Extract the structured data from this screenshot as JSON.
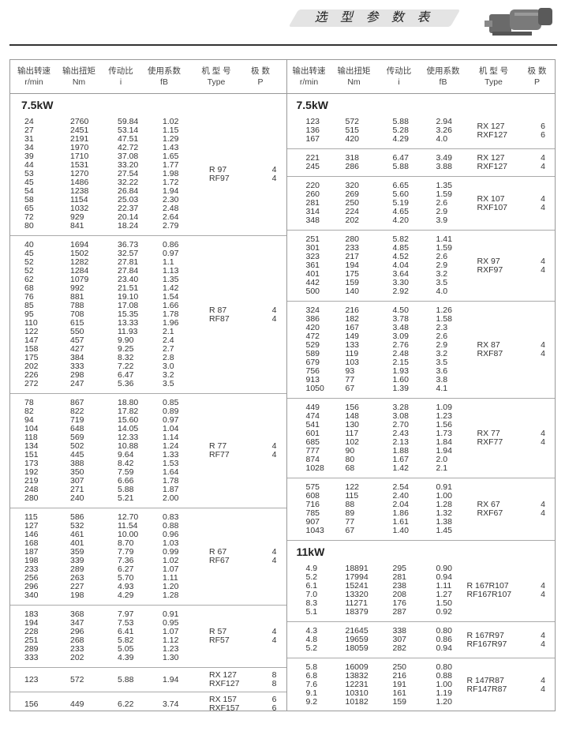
{
  "page_title": "选 型 参 数 表",
  "header": {
    "cols": [
      [
        "输出转速",
        "r/min"
      ],
      [
        "输出扭矩",
        "Nm"
      ],
      [
        "传动比",
        "i"
      ],
      [
        "使用系数",
        "fB"
      ],
      [
        "机 型 号",
        "Type"
      ],
      [
        "极  数",
        "P"
      ]
    ]
  },
  "left": [
    {
      "title": "7.5kW",
      "rows": [
        [
          "24",
          "2760",
          "59.84",
          "1.02"
        ],
        [
          "27",
          "2451",
          "53.14",
          "1.15"
        ],
        [
          "31",
          "2191",
          "47.51",
          "1.29"
        ],
        [
          "34",
          "1970",
          "42.72",
          "1.43"
        ],
        [
          "39",
          "1710",
          "37.08",
          "1.65"
        ],
        [
          "44",
          "1531",
          "33.20",
          "1.77"
        ],
        [
          "53",
          "1270",
          "27.54",
          "1.98"
        ],
        [
          "45",
          "1486",
          "32.22",
          "1.72"
        ],
        [
          "54",
          "1238",
          "26.84",
          "1.94"
        ],
        [
          "58",
          "1154",
          "25.03",
          "2.30"
        ],
        [
          "65",
          "1032",
          "22.37",
          "2.48"
        ],
        [
          "72",
          "929",
          "20.14",
          "2.64"
        ],
        [
          "80",
          "841",
          "18.24",
          "2.79"
        ]
      ],
      "types": [
        "R  97",
        "RF97"
      ],
      "poles": [
        "4",
        "4"
      ]
    },
    {
      "rows": [
        [
          "40",
          "1694",
          "36.73",
          "0.86"
        ],
        [
          "45",
          "1502",
          "32.57",
          "0.97"
        ],
        [
          "52",
          "1282",
          "27.81",
          "1.1"
        ],
        [
          "52",
          "1284",
          "27.84",
          "1.13"
        ],
        [
          "62",
          "1079",
          "23.40",
          "1.35"
        ],
        [
          "68",
          "992",
          "21.51",
          "1.42"
        ],
        [
          "76",
          "881",
          "19.10",
          "1.54"
        ],
        [
          "85",
          "788",
          "17.08",
          "1.66"
        ],
        [
          "95",
          "708",
          "15.35",
          "1.78"
        ],
        [
          "110",
          "615",
          "13.33",
          "1.96"
        ],
        [
          "122",
          "550",
          "11.93",
          "2.1"
        ],
        [
          "147",
          "457",
          "9.90",
          "2.4"
        ],
        [
          "158",
          "427",
          "9.25",
          "2.7"
        ],
        [
          "175",
          "384",
          "8.32",
          "2.8"
        ],
        [
          "202",
          "333",
          "7.22",
          "3.0"
        ],
        [
          "226",
          "298",
          "6.47",
          "3.2"
        ],
        [
          "272",
          "247",
          "5.36",
          "3.5"
        ]
      ],
      "types": [
        "R  87",
        "RF87"
      ],
      "poles": [
        "4",
        "4"
      ]
    },
    {
      "rows": [
        [
          "78",
          "867",
          "18.80",
          "0.85"
        ],
        [
          "82",
          "822",
          "17.82",
          "0.89"
        ],
        [
          "94",
          "719",
          "15.60",
          "0.97"
        ],
        [
          "104",
          "648",
          "14.05",
          "1.04"
        ],
        [
          "118",
          "569",
          "12.33",
          "1.14"
        ],
        [
          "134",
          "502",
          "10.88",
          "1.24"
        ],
        [
          "151",
          "445",
          "9.64",
          "1.33"
        ],
        [
          "173",
          "388",
          "8.42",
          "1.53"
        ],
        [
          "192",
          "350",
          "7.59",
          "1.64"
        ],
        [
          "219",
          "307",
          "6.66",
          "1.78"
        ],
        [
          "248",
          "271",
          "5.88",
          "1.87"
        ],
        [
          "280",
          "240",
          "5.21",
          "2.00"
        ]
      ],
      "types": [
        "R  77",
        "RF77"
      ],
      "poles": [
        "4",
        "4"
      ]
    },
    {
      "rows": [
        [
          "115",
          "586",
          "12.70",
          "0.83"
        ],
        [
          "127",
          "532",
          "11.54",
          "0.88"
        ],
        [
          "146",
          "461",
          "10.00",
          "0.96"
        ],
        [
          "168",
          "401",
          "8.70",
          "1.03"
        ],
        [
          "187",
          "359",
          "7.79",
          "0.99"
        ],
        [
          "198",
          "339",
          "7.36",
          "1.02"
        ],
        [
          "233",
          "289",
          "6.27",
          "1.07"
        ],
        [
          "256",
          "263",
          "5.70",
          "1.11"
        ],
        [
          "296",
          "227",
          "4.93",
          "1.20"
        ],
        [
          "340",
          "198",
          "4.29",
          "1.28"
        ]
      ],
      "types": [
        "R  67",
        "RF67"
      ],
      "poles": [
        "4",
        "4"
      ]
    },
    {
      "rows": [
        [
          "183",
          "368",
          "7.97",
          "0.91"
        ],
        [
          "194",
          "347",
          "7.53",
          "0.95"
        ],
        [
          "228",
          "296",
          "6.41",
          "1.07"
        ],
        [
          "251",
          "268",
          "5.82",
          "1.12"
        ],
        [
          "289",
          "233",
          "5.05",
          "1.23"
        ],
        [
          "333",
          "202",
          "4.39",
          "1.30"
        ]
      ],
      "types": [
        "R  57",
        "RF57"
      ],
      "poles": [
        "4",
        "4"
      ]
    },
    {
      "rows": [
        [
          "123",
          "572",
          "5.88",
          "1.94"
        ]
      ],
      "types": [
        "RX  127",
        "RXF127"
      ],
      "poles": [
        "8",
        "8"
      ]
    },
    {
      "rows": [
        [
          "156",
          "449",
          "6.22",
          "3.74"
        ]
      ],
      "types": [
        "RX  157",
        "RXF157"
      ],
      "poles": [
        "6",
        "6"
      ]
    }
  ],
  "right": [
    {
      "title": "7.5kW",
      "rows": [
        [
          "123",
          "572",
          "5.88",
          "2.94"
        ],
        [
          "136",
          "515",
          "5.28",
          "3.26"
        ],
        [
          "167",
          "420",
          "4.29",
          "4.0"
        ]
      ],
      "types": [
        "RX  127",
        "RXF127"
      ],
      "poles": [
        "6",
        "6"
      ]
    },
    {
      "rows": [
        [
          "221",
          "318",
          "6.47",
          "3.49"
        ],
        [
          "245",
          "286",
          "5.88",
          "3.88"
        ]
      ],
      "types": [
        "RX  127",
        "RXF127"
      ],
      "poles": [
        "4",
        "4"
      ]
    },
    {
      "rows": [
        [
          "220",
          "320",
          "6.65",
          "1.35"
        ],
        [
          "260",
          "269",
          "5.60",
          "1.59"
        ],
        [
          "281",
          "250",
          "5.19",
          "2.6"
        ],
        [
          "314",
          "224",
          "4.65",
          "2.9"
        ],
        [
          "348",
          "202",
          "4.20",
          "3.9"
        ]
      ],
      "types": [
        "RX  107",
        "RXF107"
      ],
      "poles": [
        "4",
        "4"
      ]
    },
    {
      "rows": [
        [
          "251",
          "280",
          "5.82",
          "1.41"
        ],
        [
          "301",
          "233",
          "4.85",
          "1.59"
        ],
        [
          "323",
          "217",
          "4.52",
          "2.6"
        ],
        [
          "361",
          "194",
          "4.04",
          "2.9"
        ],
        [
          "401",
          "175",
          "3.64",
          "3.2"
        ],
        [
          "442",
          "159",
          "3.30",
          "3.5"
        ],
        [
          "500",
          "140",
          "2.92",
          "4.0"
        ]
      ],
      "types": [
        "RX  97",
        "RXF97"
      ],
      "poles": [
        "4",
        "4"
      ]
    },
    {
      "rows": [
        [
          "324",
          "216",
          "4.50",
          "1.26"
        ],
        [
          "386",
          "182",
          "3.78",
          "1.58"
        ],
        [
          "420",
          "167",
          "3.48",
          "2.3"
        ],
        [
          "472",
          "149",
          "3.09",
          "2.6"
        ],
        [
          "529",
          "133",
          "2.76",
          "2.9"
        ],
        [
          "589",
          "119",
          "2.48",
          "3.2"
        ],
        [
          "679",
          "103",
          "2.15",
          "3.5"
        ],
        [
          "756",
          "93",
          "1.93",
          "3.6"
        ],
        [
          "913",
          "77",
          "1.60",
          "3.8"
        ],
        [
          "1050",
          "67",
          "1.39",
          "4.1"
        ]
      ],
      "types": [
        "RX  87",
        "RXF87"
      ],
      "poles": [
        "4",
        "4"
      ]
    },
    {
      "rows": [
        [
          "449",
          "156",
          "3.28",
          "1.09"
        ],
        [
          "474",
          "148",
          "3.08",
          "1.23"
        ],
        [
          "541",
          "130",
          "2.70",
          "1.56"
        ],
        [
          "601",
          "117",
          "2.43",
          "1.73"
        ],
        [
          "685",
          "102",
          "2.13",
          "1.84"
        ],
        [
          "777",
          "90",
          "1.88",
          "1.94"
        ],
        [
          "874",
          "80",
          "1.67",
          "2.0"
        ],
        [
          "1028",
          "68",
          "1.42",
          "2.1"
        ]
      ],
      "types": [
        "RX  77",
        "RXF77"
      ],
      "poles": [
        "4",
        "4"
      ]
    },
    {
      "rows": [
        [
          "575",
          "122",
          "2.54",
          "0.91"
        ],
        [
          "608",
          "115",
          "2.40",
          "1.00"
        ],
        [
          "716",
          "88",
          "2.04",
          "1.28"
        ],
        [
          "785",
          "89",
          "1.86",
          "1.32"
        ],
        [
          "907",
          "77",
          "1.61",
          "1.38"
        ],
        [
          "1043",
          "67",
          "1.40",
          "1.45"
        ]
      ],
      "types": [
        "RX  67",
        "RXF67"
      ],
      "poles": [
        "4",
        "4"
      ]
    },
    {
      "title": "11kW",
      "rows": [
        [
          "4.9",
          "18891",
          "295",
          "0.90"
        ],
        [
          "5.2",
          "17994",
          "281",
          "0.94"
        ],
        [
          "6.1",
          "15241",
          "238",
          "1.11"
        ],
        [
          "7.0",
          "13320",
          "208",
          "1.27"
        ],
        [
          "8.3",
          "11271",
          "176",
          "1.50"
        ],
        [
          "5.1",
          "18379",
          "287",
          "0.92"
        ]
      ],
      "types": [
        "R  167R107",
        "RF167R107"
      ],
      "poles": [
        "4",
        "4"
      ]
    },
    {
      "rows": [
        [
          "4.3",
          "21645",
          "338",
          "0.80"
        ],
        [
          "4.8",
          "19659",
          "307",
          "0.86"
        ],
        [
          "5.2",
          "18059",
          "282",
          "0.94"
        ]
      ],
      "types": [
        "R  167R97",
        "RF167R97"
      ],
      "poles": [
        "4",
        "4"
      ]
    },
    {
      "rows": [
        [
          "5.8",
          "16009",
          "250",
          "0.80"
        ],
        [
          "6.8",
          "13832",
          "216",
          "0.88"
        ],
        [
          "7.6",
          "12231",
          "191",
          "1.00"
        ],
        [
          "9.1",
          "10310",
          "161",
          "1.19"
        ],
        [
          "9.2",
          "10182",
          "159",
          "1.20"
        ]
      ],
      "types": [
        "R  147R87",
        "RF147R87"
      ],
      "poles": [
        "4",
        "4"
      ]
    }
  ]
}
